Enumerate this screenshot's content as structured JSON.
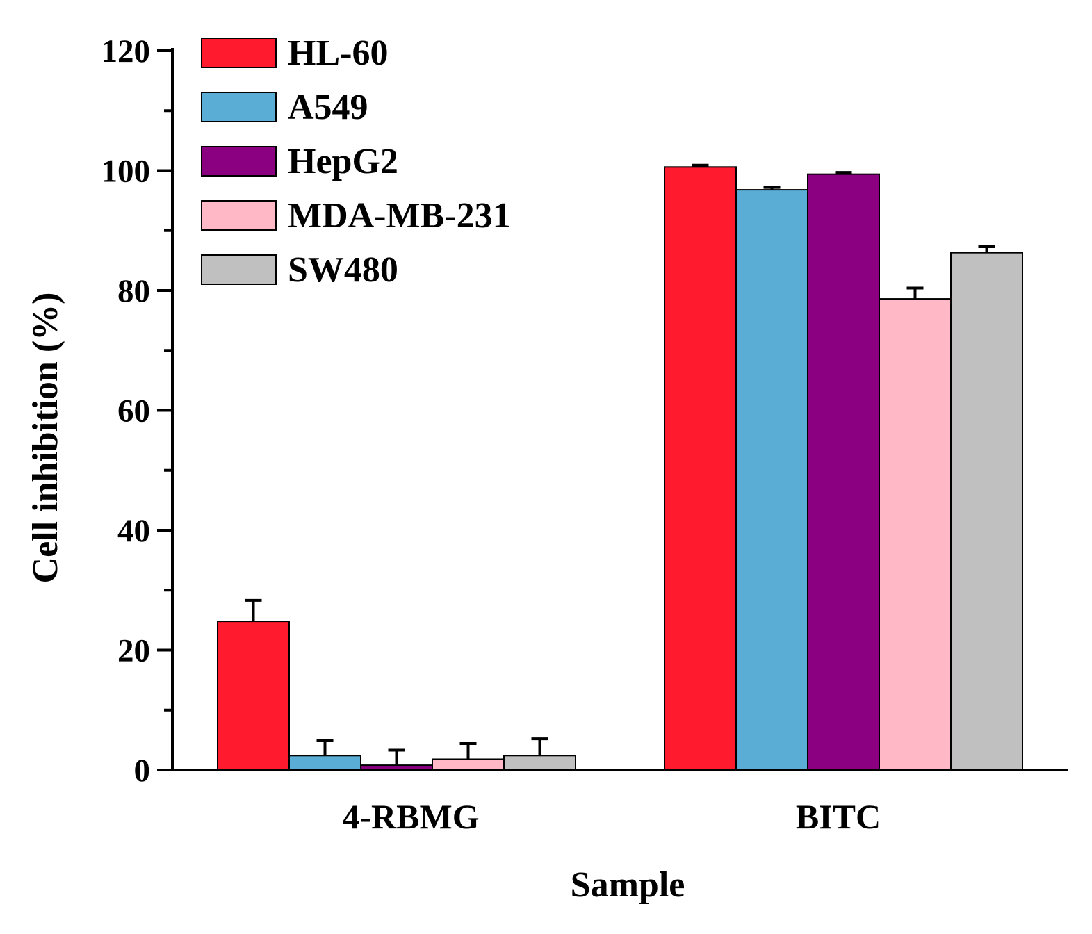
{
  "chart_data": {
    "type": "bar",
    "title": "",
    "xlabel": "Sample",
    "ylabel": "Cell inhibition (%)",
    "ylim": [
      0,
      120
    ],
    "yticks": [
      "0",
      "20",
      "40",
      "60",
      "80",
      "100",
      "120"
    ],
    "categories": [
      "4-RBMG",
      "BITC"
    ],
    "legend_position": "top-left",
    "grid": false,
    "series": [
      {
        "name": "HL-60",
        "color": "#ff1a2e",
        "values": [
          24.8,
          100.6
        ],
        "errors": [
          3.5,
          0.3
        ]
      },
      {
        "name": "A549",
        "color": "#5aaed6",
        "values": [
          2.4,
          96.8
        ],
        "errors": [
          2.5,
          0.4
        ]
      },
      {
        "name": "HepG2",
        "color": "#8b0080",
        "values": [
          0.8,
          99.4
        ],
        "errors": [
          2.5,
          0.3
        ]
      },
      {
        "name": "MDA-MB-231",
        "color": "#ffb8c6",
        "values": [
          1.8,
          78.6
        ],
        "errors": [
          2.6,
          1.8
        ]
      },
      {
        "name": "SW480",
        "color": "#c0c0c0",
        "values": [
          2.4,
          86.3
        ],
        "errors": [
          2.8,
          1.0
        ]
      }
    ]
  }
}
